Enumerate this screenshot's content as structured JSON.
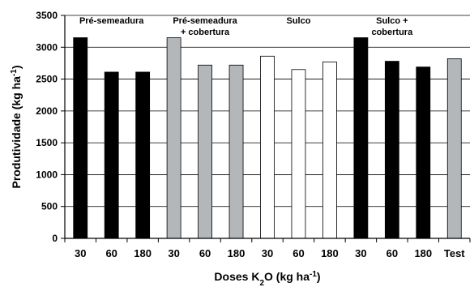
{
  "chart_data": {
    "type": "bar",
    "xlabel": "Doses K₂O (kg ha⁻¹)",
    "ylabel": "Produtividade (kg ha⁻¹)",
    "ylim": [
      0,
      3500
    ],
    "yticks": [
      0,
      500,
      1000,
      1500,
      2000,
      2500,
      3000,
      3500
    ],
    "grid": true,
    "categories": [
      "30",
      "60",
      "180",
      "30",
      "60",
      "180",
      "30",
      "60",
      "180",
      "30",
      "60",
      "180",
      "Test"
    ],
    "values": [
      3150,
      2610,
      2610,
      3150,
      2720,
      2720,
      2860,
      2650,
      2770,
      3150,
      2780,
      2690,
      2820
    ],
    "groups": [
      {
        "label": "Pré-semeadura",
        "color": "#000000",
        "bars": [
          0,
          1,
          2
        ]
      },
      {
        "label": "Pré-semeadura\n+ cobertura",
        "color": "#b4b7b9",
        "bars": [
          3,
          4,
          5
        ]
      },
      {
        "label": "Sulco",
        "color": "#ffffff",
        "bars": [
          6,
          7,
          8
        ]
      },
      {
        "label": "Sulco +\ncobertura",
        "color": "#000000",
        "bars": [
          9,
          10,
          11
        ]
      },
      {
        "label": "",
        "color": "#b4b7b9",
        "bars": [
          12
        ]
      }
    ]
  }
}
